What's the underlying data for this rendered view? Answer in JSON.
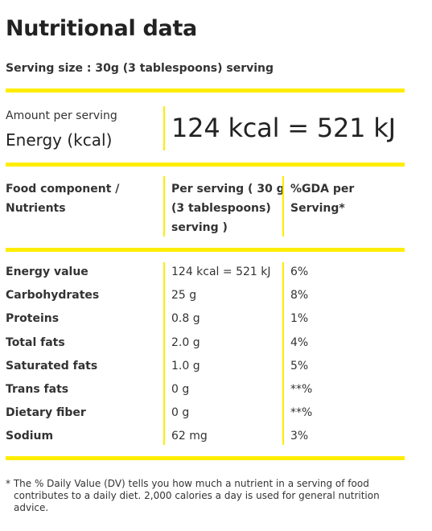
{
  "title": "Nutritional data",
  "serving_size": "Serving size : 30g (3 tablespoons) serving",
  "amount": {
    "label": "Amount per serving",
    "energy_label": "Energy (kcal)",
    "energy_value": "124 kcal = 521 kJ"
  },
  "headers": {
    "component_line1": "Food component /",
    "component_line2": "Nutrients",
    "per_serving_line1": "Per serving ( 30 g",
    "per_serving_line2": "(3 tablespoons)",
    "per_serving_line3": "serving )",
    "gda_line1": "%GDA per",
    "gda_line2": "Serving*"
  },
  "rows": [
    {
      "name": "Energy value",
      "per_serving": "124 kcal = 521 kJ",
      "gda": "6%"
    },
    {
      "name": "Carbohydrates",
      "per_serving": "25 g",
      "gda": "8%"
    },
    {
      "name": "Proteins",
      "per_serving": "0.8 g",
      "gda": "1%"
    },
    {
      "name": "Total fats",
      "per_serving": "2.0 g",
      "gda": "4%"
    },
    {
      "name": "Saturated fats",
      "per_serving": "1.0 g",
      "gda": "5%"
    },
    {
      "name": "Trans fats",
      "per_serving": "0 g",
      "gda": "**%"
    },
    {
      "name": "Dietary fiber",
      "per_serving": "0 g",
      "gda": "**%"
    },
    {
      "name": "Sodium",
      "per_serving": "62 mg",
      "gda": "3%"
    }
  ],
  "footnote": "* The % Daily Value (DV) tells you how much a nutrient in a serving of food contributes to a daily diet. 2,000 calories a day is used for general nutrition advice.",
  "colors": {
    "accent_yellow": "#ffed00",
    "text": "#333333"
  }
}
